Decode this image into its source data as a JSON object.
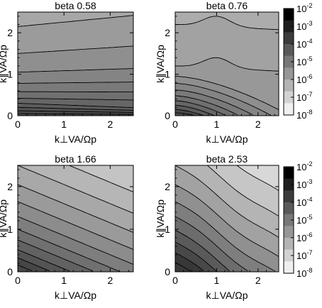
{
  "chart_data": [
    {
      "type": "heatmap",
      "title": "beta 0.58",
      "xlabel": "k⊥VA/Ωp",
      "ylabel": "k∥VA/Ωp",
      "xlim": [
        0,
        2.5
      ],
      "ylim": [
        0,
        2.5
      ],
      "xticks": [
        "0",
        "1",
        "2"
      ],
      "yticks": [
        "0",
        "1",
        "2"
      ],
      "colorbar": false,
      "bands": [
        {
          "level": -2.0,
          "color": "#4a4a4a",
          "path": [
            [
              0,
              0
            ],
            [
              0.6,
              0
            ],
            [
              0.9,
              0
            ],
            [
              1.4,
              0
            ],
            [
              1.7,
              0
            ],
            [
              0,
              0
            ]
          ]
        },
        {
          "level": -6.5,
          "color": "#8c8c8c",
          "levels_y": [
            0.05,
            0.12,
            0.2,
            0.3,
            0.42,
            0.58,
            0.78,
            1.05,
            1.48,
            2.1
          ]
        }
      ]
    },
    {
      "type": "heatmap",
      "title": "beta 0.76",
      "xlabel": "k⊥VA/Ωp",
      "ylabel": "k∥VA/Ωp",
      "xlim": [
        0,
        2.5
      ],
      "ylim": [
        0,
        2.5
      ],
      "xticks": [
        "0",
        "1",
        "2"
      ],
      "yticks": [
        "0",
        "1",
        "2"
      ],
      "colorbar": true
    },
    {
      "type": "heatmap",
      "title": "beta 1.66",
      "xlabel": "k⊥VA/Ωp",
      "ylabel": "k∥VA/Ωp",
      "xlim": [
        0,
        2.5
      ],
      "ylim": [
        0,
        2.5
      ],
      "xticks": [
        "0",
        "1",
        "2"
      ],
      "yticks": [
        "0",
        "1",
        "2"
      ],
      "colorbar": false
    },
    {
      "type": "heatmap",
      "title": "beta 2.53",
      "xlabel": "k⊥VA/Ωp",
      "ylabel": "k∥VA/Ωp",
      "xlim": [
        0,
        2.5
      ],
      "ylim": [
        0,
        2.5
      ],
      "xticks": [
        "0",
        "1",
        "2"
      ],
      "yticks": [
        "0",
        "1",
        "2"
      ],
      "colorbar": true
    }
  ],
  "colorbar": {
    "labels": [
      "10^-2",
      "10^-3",
      "10^-4",
      "10^-5",
      "10^-6",
      "10^-7",
      "10^-8"
    ],
    "colors": [
      "#000000",
      "#1e1e1e",
      "#3c3c3c",
      "#5a5a5a",
      "#787878",
      "#969696",
      "#b4b4b4",
      "#d2d2d2",
      "#f0f0f0"
    ]
  }
}
